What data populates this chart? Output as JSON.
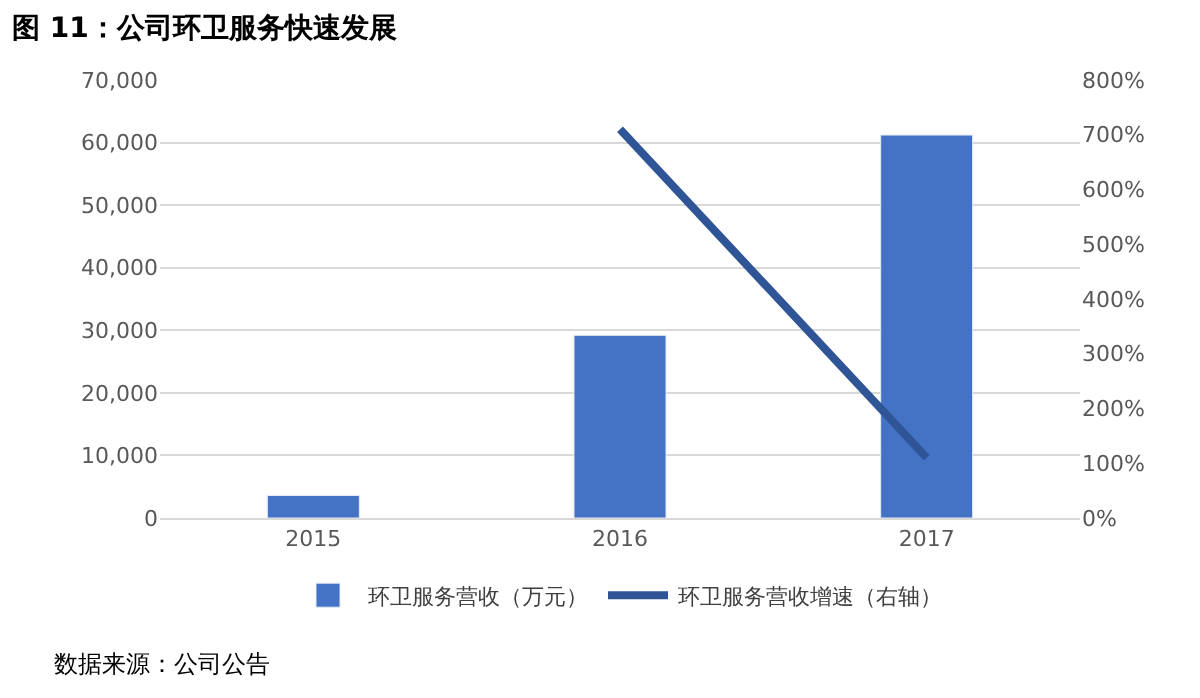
{
  "chart_data": {
    "type": "bar",
    "title": "图 11：公司环卫服务快速发展",
    "categories": [
      "2015",
      "2016",
      "2017"
    ],
    "series": [
      {
        "name": "环卫服务营收（万元）",
        "color": "#4472c4",
        "values": [
          3600,
          29200,
          61200
        ]
      },
      {
        "name": "环卫服务营收增速（右轴）",
        "type": "line",
        "axis": "y2",
        "color": "#2f5597",
        "values": [
          null,
          710,
          110
        ]
      }
    ],
    "ylim": [
      0,
      70000
    ],
    "yticks": [
      0,
      {
        "value": 10000,
        "label": "10,000"
      },
      {
        "value": 20000,
        "label": "20,000"
      },
      {
        "value": 30000,
        "label": "30,000"
      },
      {
        "value": 40000,
        "label": "40,000"
      },
      {
        "value": 50000,
        "label": "50,000"
      },
      {
        "value": 60000,
        "label": "60,000"
      },
      {
        "value": 70000,
        "label": "70,000"
      }
    ],
    "y2lim": [
      0,
      800
    ],
    "y2ticks": [
      {
        "value": 0,
        "label": "0%"
      },
      {
        "value": 100,
        "label": "100%"
      },
      {
        "value": 200,
        "label": "200%"
      },
      {
        "value": 300,
        "label": "300%"
      },
      {
        "value": 400,
        "label": "400%"
      },
      {
        "value": 500,
        "label": "500%"
      },
      {
        "value": 600,
        "label": "600%"
      },
      {
        "value": 700,
        "label": "700%"
      },
      {
        "value": 800,
        "label": "800%"
      }
    ],
    "grid": "y",
    "legend": "bottom",
    "marker": "none",
    "line_style": "solid",
    "annotations": [
      "数据来源：公司公告"
    ]
  }
}
